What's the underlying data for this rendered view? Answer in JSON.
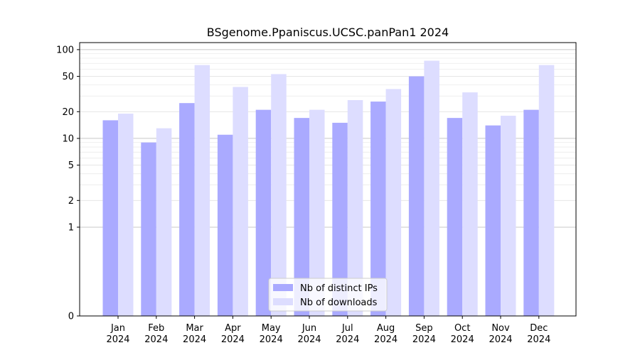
{
  "chart_data": {
    "type": "bar",
    "title": "BSgenome.Ppaniscus.UCSC.panPan1 2024",
    "xlabel": "",
    "ylabel": "",
    "yscale": "symlog",
    "ylim": [
      0,
      120
    ],
    "yticks": [
      0,
      1,
      2,
      5,
      10,
      20,
      50,
      100
    ],
    "ytick_labels": [
      "0",
      "1",
      "2",
      "5",
      "10",
      "20",
      "50",
      "100"
    ],
    "grid": true,
    "legend_placement": "bottom-center",
    "categories": [
      {
        "month": "Jan",
        "year": "2024"
      },
      {
        "month": "Feb",
        "year": "2024"
      },
      {
        "month": "Mar",
        "year": "2024"
      },
      {
        "month": "Apr",
        "year": "2024"
      },
      {
        "month": "May",
        "year": "2024"
      },
      {
        "month": "Jun",
        "year": "2024"
      },
      {
        "month": "Jul",
        "year": "2024"
      },
      {
        "month": "Aug",
        "year": "2024"
      },
      {
        "month": "Sep",
        "year": "2024"
      },
      {
        "month": "Oct",
        "year": "2024"
      },
      {
        "month": "Nov",
        "year": "2024"
      },
      {
        "month": "Dec",
        "year": "2024"
      }
    ],
    "series": [
      {
        "name": "Nb of distinct IPs",
        "color": "#aaaaff",
        "values": [
          16,
          9,
          25,
          11,
          21,
          17,
          15,
          26,
          50,
          17,
          14,
          21
        ]
      },
      {
        "name": "Nb of downloads",
        "color": "#ddddff",
        "values": [
          19,
          13,
          67,
          38,
          53,
          21,
          27,
          36,
          75,
          33,
          18,
          67
        ]
      }
    ]
  }
}
